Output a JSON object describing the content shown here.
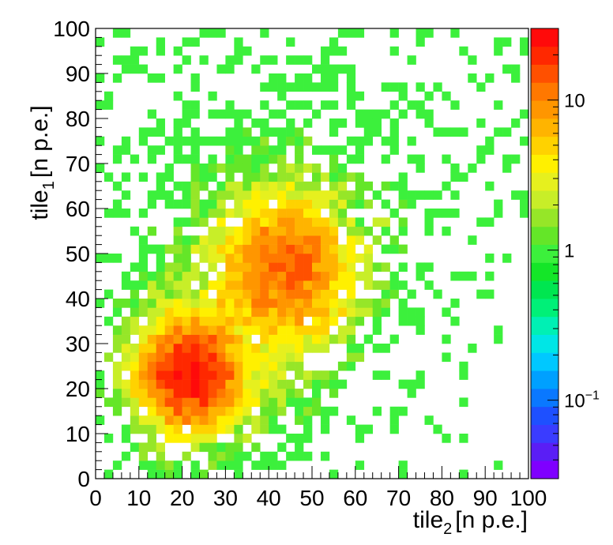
{
  "chart_data": {
    "type": "heatmap",
    "title": "",
    "xlabel": "tile",
    "xlabel_sub": "2",
    "xlabel_unit": "[n  p.e.]",
    "ylabel": "tile",
    "ylabel_sub": "1",
    "ylabel_unit": "[n  p.e.]",
    "xlim": [
      0,
      100
    ],
    "ylim": [
      0,
      100
    ],
    "bins_x": 50,
    "bins_y": 50,
    "x_ticks": [
      0,
      10,
      20,
      30,
      40,
      50,
      60,
      70,
      80,
      90,
      100
    ],
    "y_ticks": [
      0,
      10,
      20,
      30,
      40,
      50,
      60,
      70,
      80,
      90,
      100
    ],
    "z_scale": "log",
    "zlim": [
      0.03,
      30
    ],
    "z_ticks": [
      {
        "value": 10,
        "label": "10"
      },
      {
        "value": 1,
        "label": "1"
      },
      {
        "value": 0.1,
        "label": "10",
        "sup": "−1"
      }
    ],
    "colormap": [
      "#7f00ff",
      "#5a1ef5",
      "#3a3cff",
      "#1e50ff",
      "#0a78ff",
      "#00a0ff",
      "#00c8ff",
      "#00e6e6",
      "#00f0b4",
      "#00f078",
      "#00e650",
      "#14e628",
      "#3cf03c",
      "#64e628",
      "#96e628",
      "#c8ee28",
      "#e6f01e",
      "#fff000",
      "#ffd200",
      "#ffb400",
      "#ff9600",
      "#ff7800",
      "#ff5000",
      "#ff2800",
      "#ff0a0a"
    ],
    "clusters": [
      {
        "x": 22,
        "y": 23,
        "sx": 6,
        "sy": 6,
        "amplitude": 22
      },
      {
        "x": 44,
        "y": 47,
        "sx": 8,
        "sy": 8,
        "amplitude": 11
      }
    ],
    "background_level": 1
  }
}
